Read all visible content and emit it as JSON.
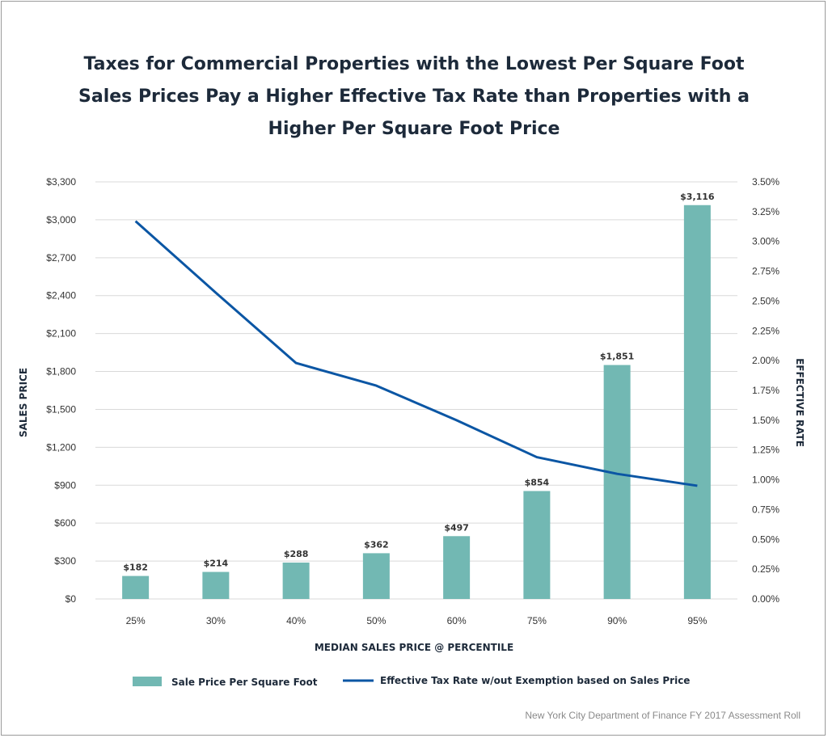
{
  "chart_data": {
    "type": "bar",
    "title": "Taxes for Commercial Properties with the Lowest Per Square Foot Sales Prices Pay a Higher Effective Tax Rate than Properties with a Higher Per Square Foot Price",
    "xlabel": "MEDIAN SALES PRICE @ PERCENTILE",
    "ylabel": "SALES PRICE",
    "y2label": "EFFECTIVE RATE",
    "categories": [
      "25%",
      "30%",
      "40%",
      "50%",
      "60%",
      "75%",
      "90%",
      "95%"
    ],
    "ylim": [
      0,
      3300
    ],
    "y_ticks": [
      "$0",
      "$300",
      "$600",
      "$900",
      "$1,200",
      "$1,500",
      "$1,800",
      "$2,100",
      "$2,400",
      "$2,700",
      "$3,000",
      "$3,300"
    ],
    "y2lim": [
      0,
      3.5
    ],
    "y2_ticks": [
      "0.00%",
      "0.25%",
      "0.50%",
      "0.75%",
      "1.00%",
      "1.25%",
      "1.50%",
      "1.75%",
      "2.00%",
      "2.25%",
      "2.50%",
      "2.75%",
      "3.00%",
      "3.25%",
      "3.50%"
    ],
    "grid": true,
    "legend_position": "bottom",
    "series": [
      {
        "name": "Sale Price Per Square Foot",
        "type": "bar",
        "axis": "left",
        "color": "#72b8b3",
        "values": [
          182,
          214,
          288,
          362,
          497,
          854,
          1851,
          3116
        ],
        "labels": [
          "$182",
          "$214",
          "$288",
          "$362",
          "$497",
          "$854",
          "$1,851",
          "$3,116"
        ]
      },
      {
        "name": "Effective Tax Rate w/out Exemption based on Sales Price",
        "type": "line",
        "axis": "right",
        "color": "#0b56a4",
        "values": [
          3.17,
          2.57,
          1.98,
          1.79,
          1.5,
          1.19,
          1.05,
          0.95
        ]
      }
    ],
    "source": "New York City Department of Finance FY 2017 Assessment Roll"
  }
}
